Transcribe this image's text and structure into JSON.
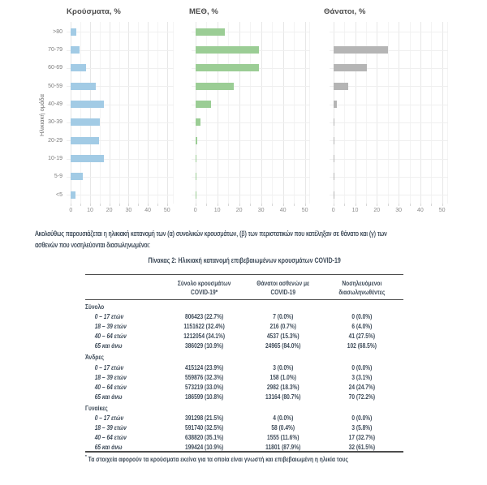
{
  "figure": {
    "y_axis_title": "Ηλικιακή ομάδα"
  },
  "chart_data": {
    "type": "bar",
    "orientation": "horizontal",
    "categories": [
      ">80",
      "70-79",
      "60-69",
      "50-59",
      "40-49",
      "30-39",
      "20-29",
      "10-19",
      "5-9",
      "<5"
    ],
    "xticks": [
      0,
      10,
      20,
      30,
      40,
      50
    ],
    "xlim": [
      0,
      55
    ],
    "grid": true,
    "legend": false,
    "series": [
      {
        "name": "Κρούσματα, %",
        "color": "#a2cbe5",
        "values": [
          3,
          4.7,
          8,
          12.8,
          17.3,
          15.2,
          14.6,
          17.3,
          6.4,
          2.5
        ]
      },
      {
        "name": "ΜΕΘ, %",
        "color": "#9bcd95",
        "values": [
          13.3,
          29,
          29,
          17.5,
          7,
          2.3,
          1,
          0.3,
          0.3,
          0.3
        ]
      },
      {
        "name": "Θάνατοι, %",
        "color": "#b5b5b5",
        "values": [
          null,
          25.2,
          15.6,
          6.8,
          1.7,
          0.5,
          0.2,
          0.2,
          0.2,
          0.2
        ]
      }
    ],
    "ylabel": "Ηλικιακή ομάδα"
  },
  "paragraph": "Ακολούθως παρουσιάζεται η ηλικιακή κατανομή των (α) συνολικών κρουσμάτων, (β) των περιστατικών που κατέληξαν σε θάνατο και (γ) των ασθενών που νοσηλεύονται διασωληνωμένοι:",
  "table": {
    "title": "Πίνακας 2: Ηλικιακή κατανομή επιβεβαιωμένων κρουσμάτων COVID-19",
    "columns": [
      "Σύνολο κρουσμάτων COVID-19*",
      "Θάνατοι ασθενών με COVID-19",
      "Νοσηλευόμενοι διασωληνωθέντες"
    ],
    "sections": [
      {
        "label": "Σύνολο",
        "rows": [
          [
            "0 – 17 ετών",
            "806423 (22.7%)",
            "7 (0.0%)",
            "0 (0.0%)"
          ],
          [
            "18 – 39 ετών",
            "1151622 (32.4%)",
            "216 (0.7%)",
            "6 (4.0%)"
          ],
          [
            "40 – 64 ετών",
            "1212054 (34.1%)",
            "4537 (15.3%)",
            "41 (27.5%)"
          ],
          [
            "65 και άνω",
            "386029 (10.9%)",
            "24965 (84.0%)",
            "102 (68.5%)"
          ]
        ]
      },
      {
        "label": "Άνδρες",
        "rows": [
          [
            "0 – 17 ετών",
            "415124 (23.9%)",
            "3 (0.0%)",
            "0 (0.0%)"
          ],
          [
            "18 – 39 ετών",
            "559876 (32.3%)",
            "158 (1.0%)",
            "3 (3.1%)"
          ],
          [
            "40 – 64 ετών",
            "573219 (33.0%)",
            "2982 (18.3%)",
            "24 (24.7%)"
          ],
          [
            "65 και άνω",
            "186599 (10.8%)",
            "13164 (80.7%)",
            "70 (72.2%)"
          ]
        ]
      },
      {
        "label": "Γυναίκες",
        "rows": [
          [
            "0 – 17 ετών",
            "391298 (21.5%)",
            "4 (0.0%)",
            "0 (0.0%)"
          ],
          [
            "18 – 39 ετών",
            "591740 (32.5%)",
            "58 (0.4%)",
            "3 (5.8%)"
          ],
          [
            "40 – 64 ετών",
            "638820 (35.1%)",
            "1555 (11.6%)",
            "17 (32.7%)"
          ],
          [
            "65 και άνω",
            "199424 (10.9%)",
            "11801 (87.9%)",
            "32 (61.5%)"
          ]
        ]
      }
    ],
    "footnote_mark": "*",
    "footnote": "Τα στοιχεία αφορούν τα κρούσματα εκείνα για τα οποία είναι γνωστή και επιβεβαιωμένη η ηλικία τους"
  }
}
